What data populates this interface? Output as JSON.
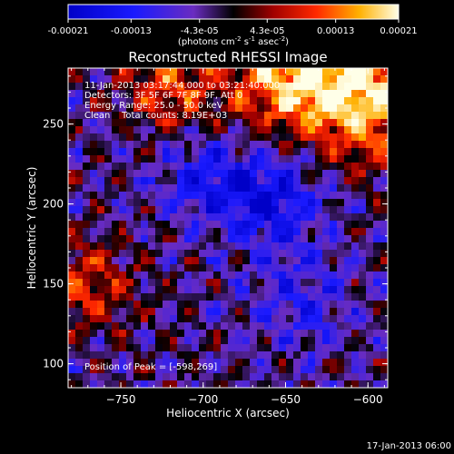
{
  "chart_data": {
    "type": "heatmap",
    "title": "Reconstructed RHESSI Image",
    "xlabel": "Heliocentric X (arcsec)",
    "ylabel": "Heliocentric Y (arcsec)",
    "xlim": [
      -782,
      -588
    ],
    "ylim": [
      85,
      285
    ],
    "x_ticks": [
      -750,
      -700,
      -650,
      -600
    ],
    "y_ticks": [
      100,
      150,
      200,
      250
    ],
    "colorbar": {
      "ticks": [
        "-0.00021",
        "-0.00013",
        "-4.3e-05",
        "4.3e-05",
        "0.00013",
        "0.00021"
      ],
      "tick_values": [
        -0.00021,
        -0.00013,
        -4.3e-05,
        4.3e-05,
        0.00013,
        0.00021
      ],
      "range": [
        -0.00021,
        0.00021
      ],
      "unit_parts": [
        "(photons cm",
        "-2",
        " s",
        "-1",
        " asec",
        "-2",
        ")"
      ]
    },
    "annotations": {
      "time_range": "11-Jan-2013 03:17:44.000 to 03:21:40.000",
      "detectors": "Detectors: 3F 5F 6F 7F 8F 9F, Att 0",
      "energy_range": "Energy Range: 25.0 - 50.0 keV",
      "clean_label": "Clean",
      "total_counts": "Total counts: 8.19E+03",
      "peak": "Position of Peak = [-598,269]"
    },
    "features": [
      {
        "x": -598,
        "y": 269,
        "sigma": 30,
        "amp": 1.0
      },
      {
        "x": -650,
        "y": 280,
        "sigma": 25,
        "amp": 0.85
      },
      {
        "x": -720,
        "y": 275,
        "sigma": 20,
        "amp": 0.6
      },
      {
        "x": -770,
        "y": 150,
        "sigma": 20,
        "amp": 0.55
      },
      {
        "x": -660,
        "y": 205,
        "sigma": 22,
        "amp": -0.7
      },
      {
        "x": -700,
        "y": 215,
        "sigma": 18,
        "amp": -0.45
      },
      {
        "x": -640,
        "y": 140,
        "sigma": 20,
        "amp": -0.4
      }
    ]
  },
  "footer_timestamp": "17-Jan-2013 06:00"
}
